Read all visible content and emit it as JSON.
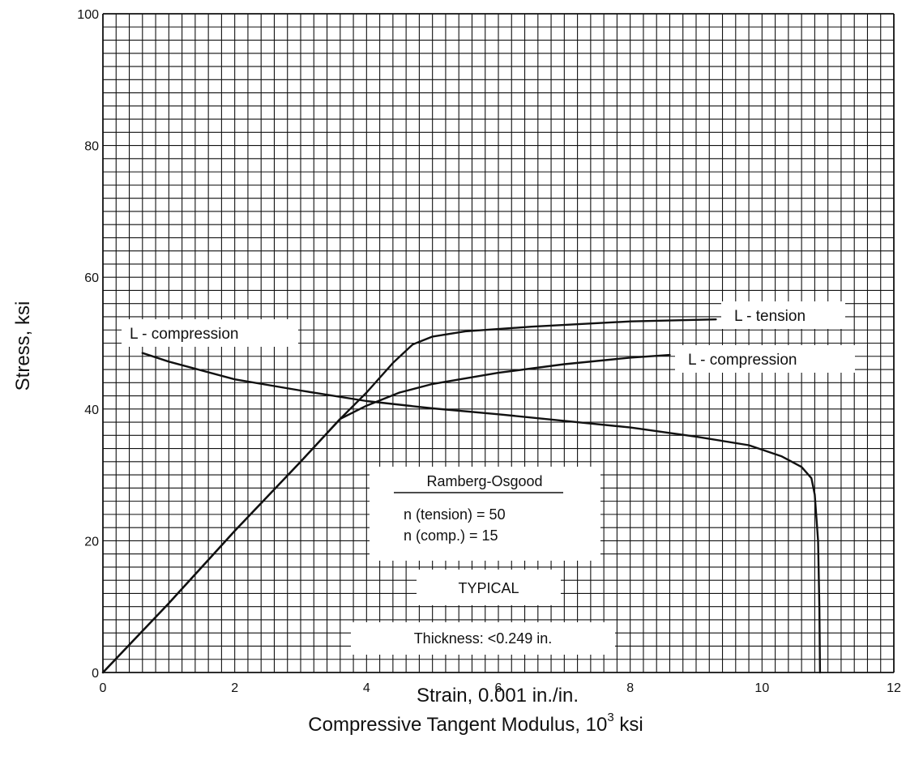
{
  "chart_data": {
    "type": "line",
    "xlim": [
      0,
      12
    ],
    "ylim": [
      0,
      100
    ],
    "x_ticks": [
      "0",
      "2",
      "4",
      "6",
      "8",
      "10",
      "12"
    ],
    "y_ticks": [
      "0",
      "20",
      "40",
      "60",
      "80",
      "100"
    ],
    "grid": true,
    "xlabel": "Strain, 0.001 in./in.",
    "xlabel2_main": "Compressive Tangent Modulus, 10",
    "xlabel2_sup": "3",
    "xlabel2_unit": " ksi",
    "ylabel": "Stress, ksi",
    "series": [
      {
        "name": "L - tension",
        "color": "#111111",
        "points": [
          [
            0,
            0
          ],
          [
            1,
            10.5
          ],
          [
            2,
            21.5
          ],
          [
            3,
            32
          ],
          [
            3.6,
            38.5
          ],
          [
            4.0,
            42.5
          ],
          [
            4.4,
            47
          ],
          [
            4.7,
            49.8
          ],
          [
            5.0,
            51
          ],
          [
            5.5,
            51.8
          ],
          [
            6.5,
            52.5
          ],
          [
            8.0,
            53.3
          ],
          [
            9.3,
            53.6
          ]
        ]
      },
      {
        "name": "L - compression",
        "color": "#111111",
        "points": [
          [
            0,
            0
          ],
          [
            1,
            10.5
          ],
          [
            2,
            21.5
          ],
          [
            3,
            32
          ],
          [
            3.6,
            38.5
          ],
          [
            4.0,
            40.5
          ],
          [
            4.5,
            42.5
          ],
          [
            5.0,
            43.8
          ],
          [
            6.0,
            45.5
          ],
          [
            7.0,
            46.8
          ],
          [
            8.0,
            47.8
          ],
          [
            8.6,
            48.2
          ]
        ]
      },
      {
        "name": "L - compression",
        "color": "#111111",
        "points": [
          [
            0.6,
            48.5
          ],
          [
            1.0,
            47.2
          ],
          [
            2.0,
            44.5
          ],
          [
            3.0,
            42.8
          ],
          [
            4.0,
            41.2
          ],
          [
            5.0,
            40.1
          ],
          [
            6.0,
            39.2
          ],
          [
            7.0,
            38.2
          ],
          [
            8.0,
            37.2
          ],
          [
            9.0,
            35.8
          ],
          [
            9.8,
            34.5
          ],
          [
            10.3,
            32.8
          ],
          [
            10.6,
            31.2
          ],
          [
            10.75,
            29.5
          ],
          [
            10.8,
            27
          ],
          [
            10.85,
            20
          ],
          [
            10.87,
            10
          ],
          [
            10.88,
            0
          ]
        ]
      }
    ],
    "labels": {
      "tension": "L - tension",
      "compression_right": "L - compression",
      "compression_left": "L - compression"
    },
    "annotation": {
      "title": "Ramberg-Osgood",
      "line1": "n (tension) = 50",
      "line2": "n (comp.) = 15",
      "typical": "TYPICAL",
      "thickness": "Thickness: <0.249 in."
    }
  }
}
